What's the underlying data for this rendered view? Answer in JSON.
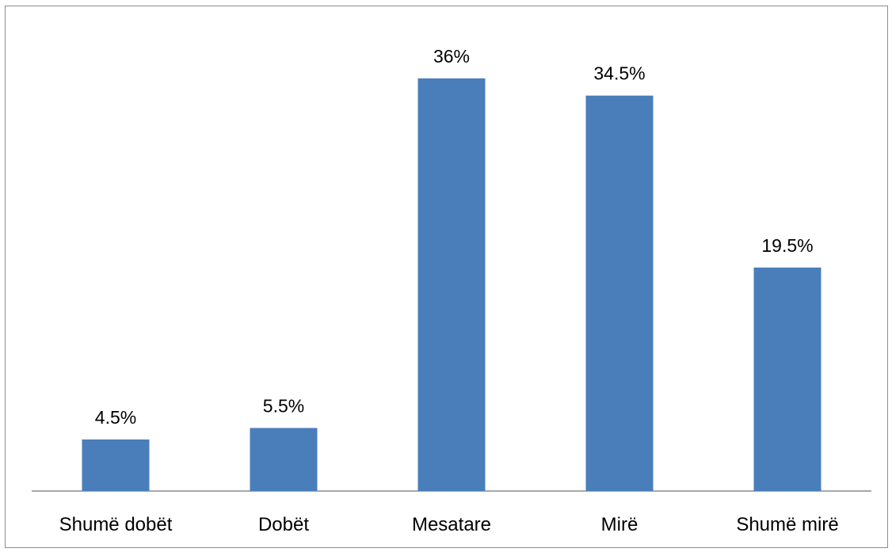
{
  "chart_data": {
    "type": "bar",
    "categories": [
      "Shumë dobët",
      "Dobët",
      "Mesatare",
      "Mirë",
      "Shumë mirë"
    ],
    "values": [
      4.5,
      5.5,
      36,
      34.5,
      19.5
    ],
    "data_labels": [
      "4.5%",
      "5.5%",
      "36%",
      "34.5%",
      "19.5%"
    ],
    "ylim": [
      0,
      36
    ],
    "bar_color": "#4a7ebb",
    "axis_color": "#8c8c8c",
    "grid": false,
    "legend": "none"
  }
}
